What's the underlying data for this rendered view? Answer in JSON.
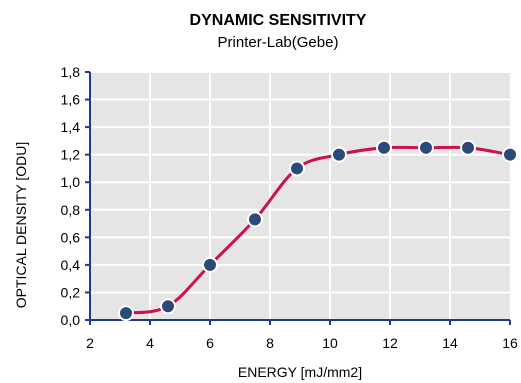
{
  "chart_data": {
    "type": "line",
    "title": "DYNAMIC SENSITIVITY",
    "subtitle": "Printer-Lab(Gebe)",
    "xlabel": "ENERGY [mJ/mm2]",
    "ylabel": "OPTICAL DENSITY [ODU]",
    "xlim": [
      2,
      16
    ],
    "ylim": [
      0,
      1.8
    ],
    "x_ticks": [
      "2",
      "4",
      "6",
      "8",
      "10",
      "12",
      "14",
      "16"
    ],
    "y_ticks": [
      "0,0",
      "0,2",
      "0,4",
      "0,6",
      "0,8",
      "1,0",
      "1,2",
      "1,4",
      "1,6",
      "1,8"
    ],
    "grid": true,
    "series": [
      {
        "x": [
          3.2,
          4.6,
          6.0,
          7.5,
          8.9,
          10.3,
          11.8,
          13.2,
          14.6,
          16.0
        ],
        "y": [
          0.05,
          0.1,
          0.4,
          0.73,
          1.1,
          1.2,
          1.25,
          1.25,
          1.25,
          1.2
        ],
        "line_color": "#cc1150",
        "marker_color": "#2b4a7a"
      }
    ],
    "plot_background": "#e5e5e5",
    "axis_color": "#1f3a8a"
  }
}
